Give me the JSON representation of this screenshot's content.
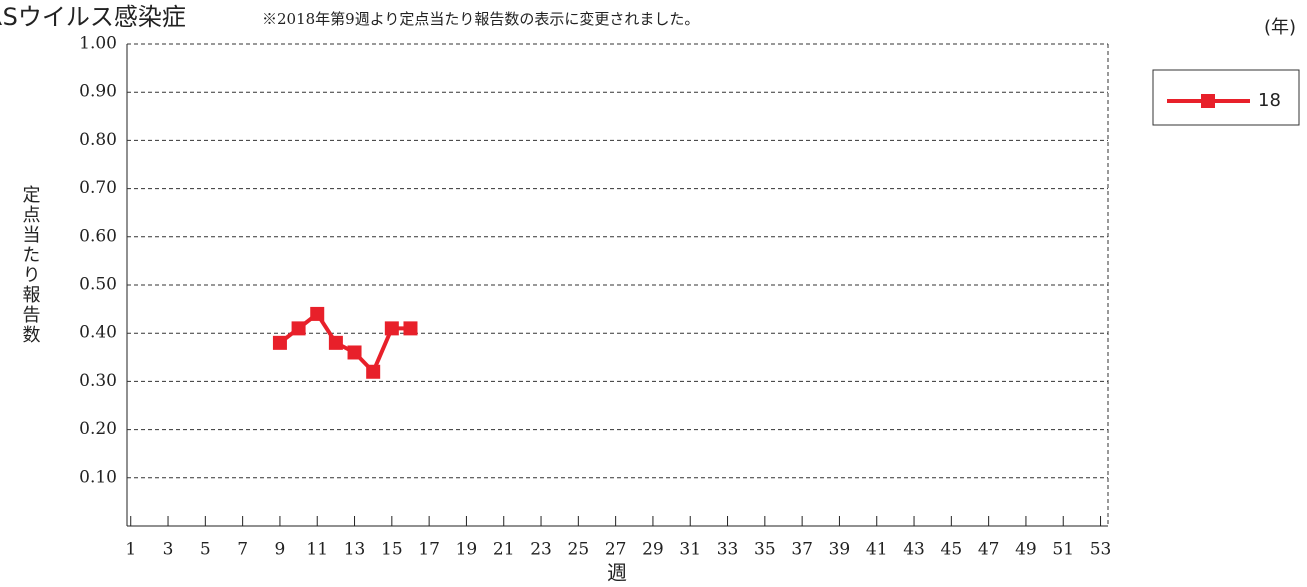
{
  "chart_data": {
    "type": "line",
    "title": "RSウイルス感染症",
    "subtitle": "※2018年第9週より定点当たり報告数の表示に変更されました。",
    "y_label": "定点当たり報告数",
    "x_label": "週",
    "legend_title": "(年)",
    "x": [
      9,
      10,
      11,
      12,
      13,
      14,
      15,
      16
    ],
    "series": [
      {
        "name": "18",
        "color": "#e8202a",
        "values": [
          0.38,
          0.41,
          0.44,
          0.38,
          0.36,
          0.32,
          0.41,
          0.41
        ]
      }
    ],
    "xlim": [
      0.8,
      53.4
    ],
    "xticks": [
      1,
      3,
      5,
      7,
      9,
      11,
      13,
      15,
      17,
      19,
      21,
      23,
      25,
      27,
      29,
      31,
      33,
      35,
      37,
      39,
      41,
      43,
      45,
      47,
      49,
      51,
      53
    ],
    "ylim": [
      0,
      1.0
    ],
    "yticks": [
      {
        "value": 0.1,
        "label": "0.10"
      },
      {
        "value": 0.2,
        "label": "0.20"
      },
      {
        "value": 0.3,
        "label": "0.30"
      },
      {
        "value": 0.4,
        "label": "0.40"
      },
      {
        "value": 0.5,
        "label": "0.50"
      },
      {
        "value": 0.6,
        "label": "0.60"
      },
      {
        "value": 0.7,
        "label": "0.70"
      },
      {
        "value": 0.8,
        "label": "0.80"
      },
      {
        "value": 0.9,
        "label": "0.90"
      },
      {
        "value": 1.0,
        "label": "1.00"
      }
    ],
    "grid": true
  }
}
